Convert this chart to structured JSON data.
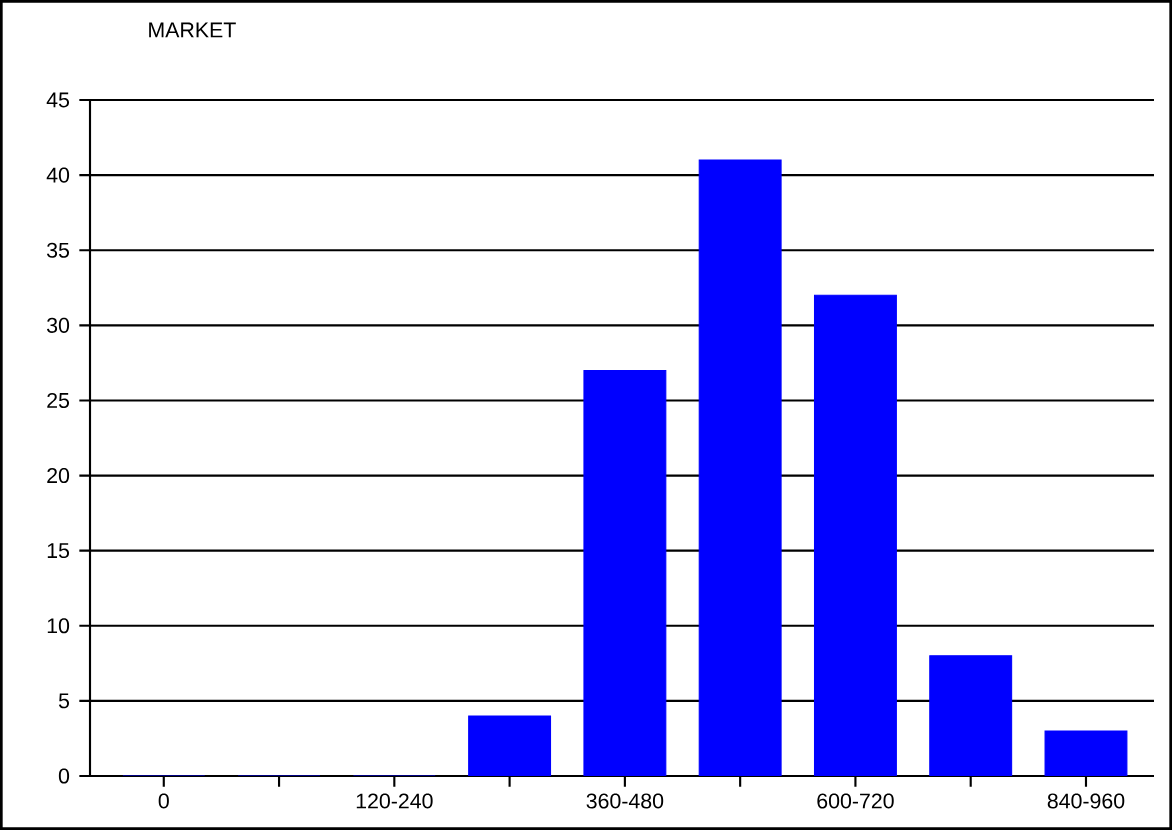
{
  "chart_data": {
    "type": "bar",
    "title": "MARKET",
    "categories": [
      "0",
      null,
      "120-240",
      null,
      "360-480",
      null,
      "600-720",
      null,
      "840-960"
    ],
    "values": [
      0,
      0,
      0,
      4,
      27,
      41,
      32,
      8,
      3
    ],
    "color": "#0000ff",
    "ylim": [
      0,
      45
    ],
    "yticks": [
      0,
      5,
      10,
      15,
      20,
      25,
      30,
      35,
      40,
      45
    ],
    "grid": "y"
  }
}
